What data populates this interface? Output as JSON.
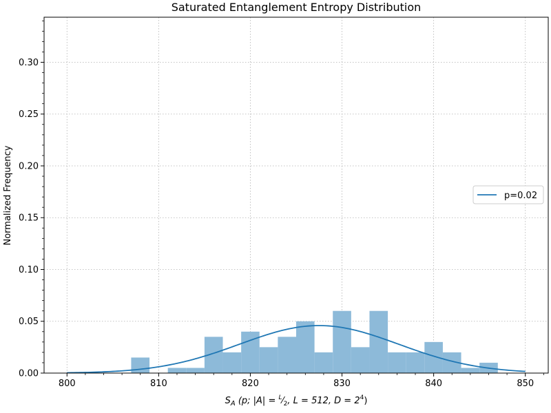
{
  "chart_data": {
    "type": "bar",
    "title": "Saturated Entanglement Entropy Distribution",
    "xlabel": "S_A (p; |A| = L/2, L = 512, D = 2^4)",
    "xlabel_parts": {
      "var": "S",
      "sub": "A",
      "args": "(p; |A| = ",
      "frac_num": "L",
      "frac_den": "2",
      "rest": ", L = 512, D = 2",
      "sup": "4",
      "close": ")"
    },
    "ylabel": "Normalized Frequency",
    "xlim": [
      797.5,
      852.5
    ],
    "ylim": [
      0,
      0.3435
    ],
    "xticks": [
      800,
      810,
      820,
      830,
      840,
      850
    ],
    "yticks": [
      0.0,
      0.05,
      0.1,
      0.15,
      0.2,
      0.25,
      0.3
    ],
    "ytick_labels": [
      "0.00",
      "0.05",
      "0.10",
      "0.15",
      "0.20",
      "0.25",
      "0.30"
    ],
    "grid": true,
    "histogram": {
      "bin_edges": [
        807.0,
        809.0,
        811.0,
        813.0,
        815.0,
        817.0,
        819.0,
        821.0,
        823.0,
        825.0,
        827.0,
        829.0,
        831.0,
        833.0,
        835.0,
        837.0,
        839.0,
        841.0,
        843.0,
        845.0,
        847.0
      ],
      "values": [
        0.015,
        0.0,
        0.005,
        0.005,
        0.035,
        0.02,
        0.04,
        0.025,
        0.035,
        0.05,
        0.02,
        0.06,
        0.025,
        0.06,
        0.02,
        0.02,
        0.03,
        0.02,
        0.005,
        0.01
      ],
      "color": "#8dbad9"
    },
    "series": [
      {
        "name": "p=0.02",
        "type": "line",
        "color": "#1f77b4",
        "distribution": "normal",
        "mean": 827.5,
        "std": 8.7,
        "x_range": [
          800,
          850
        ]
      }
    ],
    "legend_position": "center-right"
  }
}
